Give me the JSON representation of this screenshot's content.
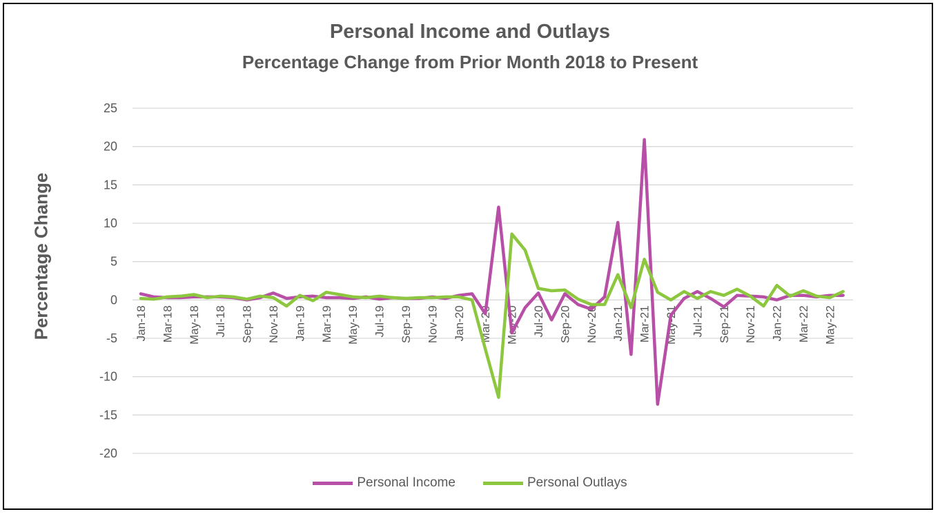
{
  "chart_data": {
    "type": "line",
    "title": "Personal Income and Outlays",
    "subtitle": "Percentage Change from Prior Month 2018 to Present",
    "ylabel": "Percentage Change",
    "xlabel": "",
    "ylim": [
      -20,
      25
    ],
    "yticks": [
      25,
      20,
      15,
      10,
      5,
      0,
      -5,
      -10,
      -15,
      -20
    ],
    "grid": true,
    "legend_position": "bottom",
    "x": [
      "Jan-18",
      "Feb-18",
      "Mar-18",
      "Apr-18",
      "May-18",
      "Jun-18",
      "Jul-18",
      "Aug-18",
      "Sep-18",
      "Oct-18",
      "Nov-18",
      "Dec-18",
      "Jan-19",
      "Feb-19",
      "Mar-19",
      "Apr-19",
      "May-19",
      "Jun-19",
      "Jul-19",
      "Aug-19",
      "Sep-19",
      "Oct-19",
      "Nov-19",
      "Dec-19",
      "Jan-20",
      "Feb-20",
      "Mar-20",
      "Apr-20",
      "May-20",
      "Jun-20",
      "Jul-20",
      "Aug-20",
      "Sep-20",
      "Oct-20",
      "Nov-20",
      "Dec-20",
      "Jan-21",
      "Feb-21",
      "Mar-21",
      "Apr-21",
      "May-21",
      "Jun-21",
      "Jul-21",
      "Aug-21",
      "Sep-21",
      "Oct-21",
      "Nov-21",
      "Dec-21",
      "Jan-22",
      "Feb-22",
      "Mar-22",
      "Apr-22",
      "May-22",
      "Jun-22"
    ],
    "xtick_labels": [
      "Jan-18",
      "Mar-18",
      "May-18",
      "Jul-18",
      "Sep-18",
      "Nov-18",
      "Jan-19",
      "Mar-19",
      "May-19",
      "Jul-19",
      "Sep-19",
      "Nov-19",
      "Jan-20",
      "Mar-20",
      "May-20",
      "Jul-20",
      "Sep-20",
      "Nov-20",
      "Jan-21",
      "Mar-21",
      "May-21",
      "Jul-21",
      "Sep-21",
      "Nov-21",
      "Jan-22",
      "Mar-22",
      "May-22"
    ],
    "series": [
      {
        "name": "Personal Income",
        "color": "#b84fa6",
        "values": [
          0.8,
          0.4,
          0.3,
          0.3,
          0.4,
          0.4,
          0.4,
          0.3,
          0.0,
          0.3,
          0.9,
          0.2,
          0.4,
          0.5,
          0.3,
          0.3,
          0.2,
          0.4,
          0.1,
          0.3,
          0.2,
          0.2,
          0.4,
          0.2,
          0.6,
          0.8,
          -1.8,
          12.1,
          -4.3,
          -1.0,
          0.9,
          -2.6,
          0.8,
          -0.6,
          -1.2,
          0.4,
          10.1,
          -7.1,
          20.9,
          -13.6,
          -2.0,
          0.2,
          1.1,
          0.2,
          -0.9,
          0.6,
          0.5,
          0.4,
          0.0,
          0.6,
          0.6,
          0.4,
          0.6,
          0.6
        ]
      },
      {
        "name": "Personal Outlays",
        "color": "#8dc63f",
        "values": [
          0.2,
          0.1,
          0.4,
          0.5,
          0.7,
          0.3,
          0.5,
          0.4,
          0.1,
          0.5,
          0.3,
          -0.8,
          0.6,
          -0.1,
          1.0,
          0.7,
          0.4,
          0.3,
          0.5,
          0.3,
          0.2,
          0.3,
          0.3,
          0.4,
          0.4,
          0.0,
          -6.4,
          -12.7,
          8.6,
          6.5,
          1.5,
          1.2,
          1.3,
          0.1,
          -0.6,
          -0.6,
          3.3,
          -1.0,
          5.3,
          1.0,
          0.0,
          1.1,
          0.2,
          1.1,
          0.6,
          1.4,
          0.5,
          -0.8,
          1.9,
          0.5,
          1.2,
          0.5,
          0.3,
          1.1
        ]
      }
    ]
  }
}
